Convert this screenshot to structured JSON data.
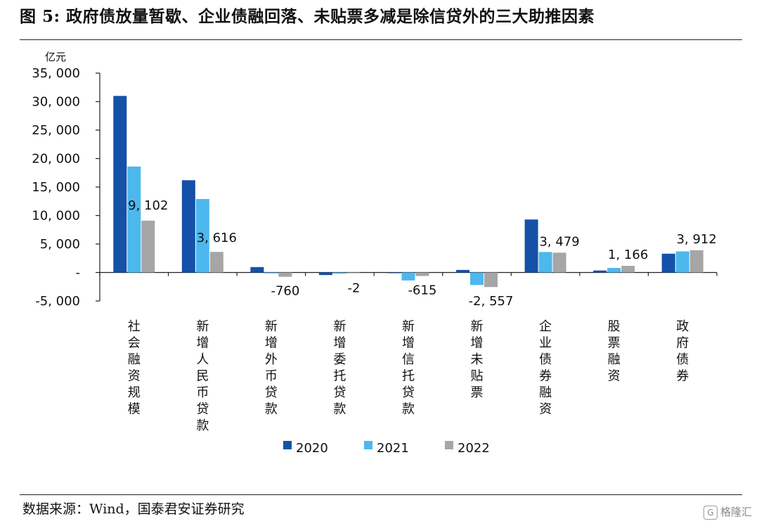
{
  "header": {
    "title": "图 5:  政府债放量暂歇、企业债融回落、未贴票多减是除信贷外的三大助推因素"
  },
  "footer": {
    "source": "数据来源：Wind，国泰君安证券研究",
    "watermark": "格隆汇"
  },
  "chart_data": {
    "type": "bar",
    "unit_label": "亿元",
    "categories": [
      "社会融资规模",
      "新增人民币贷款",
      "新增外币贷款",
      "新增委托贷款",
      "新增信托贷款",
      "新增未贴票",
      "企业债券融资",
      "股票融资",
      "政府债券"
    ],
    "series": [
      {
        "name": "2020",
        "color": "#1551a8",
        "values": [
          31000,
          16200,
          950,
          -450,
          -100,
          450,
          9300,
          350,
          3300
        ]
      },
      {
        "name": "2021",
        "color": "#4db8ee",
        "values": [
          18600,
          12900,
          -150,
          -200,
          -1400,
          -2200,
          3600,
          800,
          3700
        ]
      },
      {
        "name": "2022",
        "color": "#a6a6a6",
        "values": [
          9102,
          3616,
          -760,
          -2,
          -615,
          -2557,
          3479,
          1166,
          3912
        ]
      }
    ],
    "data_labels": [
      "9, 102",
      "3, 616",
      "-760",
      "-2",
      "-615",
      "-2, 557",
      "3, 479",
      "1, 166",
      "3, 912"
    ],
    "ylim": [
      -5000,
      35000
    ],
    "yticks": [
      35000,
      30000,
      25000,
      20000,
      15000,
      10000,
      5000,
      0,
      -5000
    ],
    "ytick_labels": [
      "35, 000",
      "30, 000",
      "25, 000",
      "20, 000",
      "15, 000",
      "10, 000",
      "5, 000",
      "-",
      "-5, 000"
    ],
    "grid": false,
    "legend_position": "bottom"
  }
}
